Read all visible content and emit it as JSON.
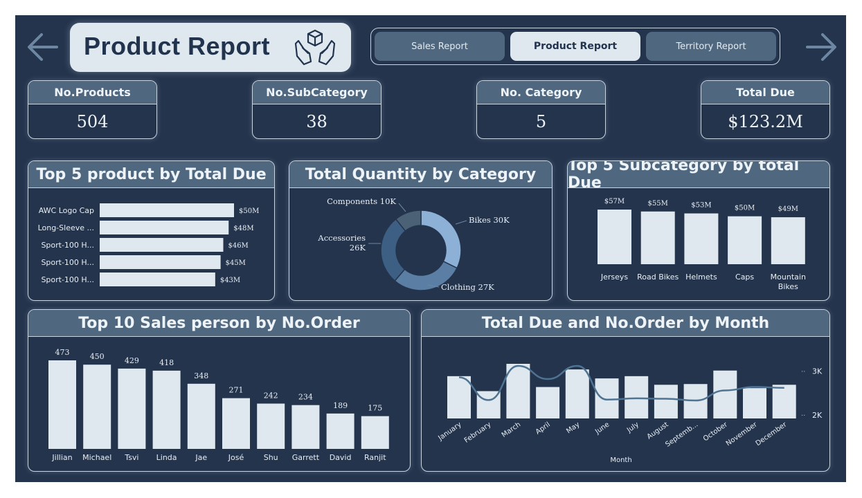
{
  "header": {
    "title": "Product Report",
    "title_icon": "box-in-hands-icon",
    "back_icon": "arrow-left-icon",
    "forward_icon": "arrow-right-icon"
  },
  "nav": {
    "items": [
      {
        "label": "Sales Report",
        "active": false
      },
      {
        "label": "Product Report",
        "active": true
      },
      {
        "label": "Territory Report",
        "active": false
      }
    ]
  },
  "kpis": [
    {
      "label": "No.Products",
      "value": "504"
    },
    {
      "label": "No.SubCategory",
      "value": "38"
    },
    {
      "label": "No. Category",
      "value": "5"
    },
    {
      "label": "Total Due",
      "value": "$123.2M"
    }
  ],
  "colors": {
    "background": "#24344d",
    "header": "#4f6880",
    "bar": "#dfe8ee",
    "line": "#4e7393",
    "donut": [
      "#8cb0d6",
      "#5b7fa4",
      "#3d5f84",
      "#4b6176"
    ]
  },
  "chart_data": [
    {
      "type": "bar",
      "orientation": "horizontal",
      "title": "Top 5 product by Total Due",
      "categories": [
        "AWC Logo Cap",
        "Long-Sleeve ...",
        "Sport-100 H...",
        "Sport-100 H...",
        "Sport-100 H..."
      ],
      "values": [
        50,
        48,
        46,
        45,
        43
      ],
      "data_labels": [
        "$50M",
        "$48M",
        "$46M",
        "$45M",
        "$43M"
      ],
      "unit": "$M"
    },
    {
      "type": "pie",
      "variant": "donut",
      "title": "Total Quantity by Category",
      "categories": [
        "Bikes",
        "Clothing",
        "Accessories",
        "Components"
      ],
      "values": [
        30,
        27,
        26,
        10
      ],
      "data_labels": [
        "Bikes 30K",
        "Clothing 27K",
        "Accessories 26K",
        "Components 10K"
      ]
    },
    {
      "type": "bar",
      "title": "Top 5 Subcategory by total Due",
      "categories": [
        "Jerseys",
        "Road Bikes",
        "Helmets",
        "Caps",
        "Mountain Bikes"
      ],
      "values": [
        57,
        55,
        53,
        50,
        49
      ],
      "data_labels": [
        "$57M",
        "$55M",
        "$53M",
        "$50M",
        "$49M"
      ],
      "unit": "$M"
    },
    {
      "type": "bar",
      "title": "Top 10 Sales person by No.Order",
      "categories": [
        "Jillian",
        "Michael",
        "Tsvi",
        "Linda",
        "Jae",
        "José",
        "Shu",
        "Garrett",
        "David",
        "Ranjit"
      ],
      "values": [
        473,
        450,
        429,
        418,
        348,
        271,
        242,
        234,
        189,
        175
      ],
      "data_labels": [
        "473",
        "450",
        "429",
        "418",
        "348",
        "271",
        "242",
        "234",
        "189",
        "175"
      ]
    },
    {
      "type": "bar",
      "title": "Total Due and No.Order by Month",
      "xlabel": "Month",
      "categories": [
        "January",
        "February",
        "March",
        "April",
        "May",
        "June",
        "July",
        "August",
        "Septemb...",
        "October",
        "November",
        "December"
      ],
      "series": [
        {
          "values": [
            11.3,
            7.3,
            14.6,
            8.4,
            13.1,
            10.7,
            11.3,
            9.0,
            9.2,
            12.8,
            8.1,
            9.0
          ]
        },
        {
          "values": [
            2860,
            2340,
            3120,
            2820,
            3120,
            2350,
            2380,
            2370,
            2330,
            2560,
            2640,
            2620
          ]
        }
      ],
      "right_axis_ticks": [
        "2K",
        "3K"
      ],
      "right_ylim": [
        1920,
        3500
      ]
    }
  ]
}
